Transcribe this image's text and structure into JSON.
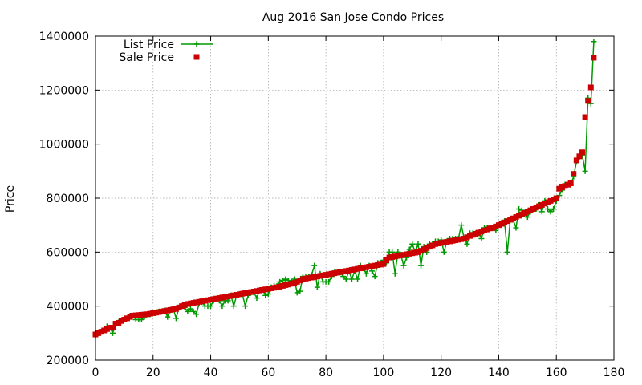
{
  "chart_data": {
    "type": "line",
    "title": "Aug 2016 San Jose Condo Prices",
    "xlabel": "",
    "ylabel": "Price",
    "xlim": [
      0,
      180
    ],
    "ylim": [
      200000,
      1400000
    ],
    "x_ticks": [
      "0",
      "20",
      "40",
      "60",
      "80",
      "100",
      "120",
      "140",
      "160",
      "180"
    ],
    "y_ticks": [
      "200000",
      "400000",
      "600000",
      "800000",
      "1000000",
      "1200000",
      "1400000"
    ],
    "grid": true,
    "legend_position": "top-left",
    "series": [
      {
        "name": "List Price",
        "style": "line-plus",
        "color": "#009900",
        "values": [
          290000,
          300000,
          305000,
          310000,
          325000,
          320000,
          300000,
          335000,
          340000,
          345000,
          350000,
          355000,
          365000,
          365000,
          350000,
          350000,
          350000,
          360000,
          370000,
          370000,
          375000,
          375000,
          380000,
          380000,
          385000,
          360000,
          385000,
          390000,
          355000,
          395000,
          400000,
          395000,
          380000,
          390000,
          380000,
          370000,
          410000,
          415000,
          400000,
          400000,
          400000,
          420000,
          425000,
          420000,
          400000,
          420000,
          420000,
          440000,
          400000,
          440000,
          445000,
          445000,
          400000,
          440000,
          450000,
          450000,
          430000,
          460000,
          460000,
          440000,
          445000,
          470000,
          475000,
          475000,
          490000,
          495000,
          500000,
          495000,
          490000,
          500000,
          450000,
          455000,
          510000,
          510000,
          510000,
          515000,
          550000,
          470000,
          520000,
          490000,
          490000,
          490000,
          510000,
          525000,
          525000,
          525000,
          510000,
          500000,
          530000,
          500000,
          530000,
          500000,
          550000,
          540000,
          520000,
          550000,
          530000,
          510000,
          560000,
          560000,
          570000,
          560000,
          600000,
          600000,
          520000,
          600000,
          590000,
          550000,
          580000,
          610000,
          630000,
          600000,
          630000,
          550000,
          620000,
          600000,
          630000,
          630000,
          640000,
          640000,
          645000,
          600000,
          640000,
          650000,
          650000,
          650000,
          650000,
          700000,
          650000,
          630000,
          670000,
          670000,
          670000,
          670000,
          650000,
          690000,
          690000,
          690000,
          690000,
          680000,
          700000,
          710000,
          715000,
          600000,
          720000,
          720000,
          690000,
          760000,
          755000,
          740000,
          730000,
          750000,
          760000,
          760000,
          775000,
          750000,
          790000,
          760000,
          750000,
          760000,
          790000,
          810000,
          830000,
          850000,
          850000,
          850000,
          880000,
          935000,
          950000,
          960000,
          900000,
          1170000,
          1150000,
          1380000
        ]
      },
      {
        "name": "Sale Price",
        "style": "square",
        "color": "#cc0000",
        "values": [
          295000,
          300000,
          305000,
          310000,
          315000,
          320000,
          320000,
          335000,
          338000,
          345000,
          350000,
          355000,
          360000,
          365000,
          366000,
          367000,
          368000,
          369000,
          370000,
          372000,
          374000,
          376000,
          378000,
          380000,
          382000,
          384000,
          386000,
          388000,
          390000,
          395000,
          400000,
          405000,
          408000,
          410000,
          412000,
          414000,
          416000,
          418000,
          420000,
          422000,
          424000,
          426000,
          428000,
          430000,
          432000,
          434000,
          436000,
          438000,
          440000,
          442000,
          444000,
          446000,
          448000,
          450000,
          452000,
          454000,
          456000,
          458000,
          460000,
          462000,
          464000,
          466000,
          468000,
          470000,
          472000,
          475000,
          478000,
          480000,
          483000,
          486000,
          490000,
          495000,
          500000,
          502000,
          504000,
          506000,
          508000,
          510000,
          512000,
          514000,
          516000,
          518000,
          520000,
          522000,
          524000,
          526000,
          528000,
          530000,
          532000,
          534000,
          536000,
          538000,
          540000,
          542000,
          544000,
          546000,
          548000,
          550000,
          552000,
          554000,
          556000,
          570000,
          580000,
          582000,
          584000,
          586000,
          588000,
          590000,
          592000,
          594000,
          596000,
          598000,
          600000,
          605000,
          610000,
          615000,
          620000,
          625000,
          630000,
          632000,
          634000,
          636000,
          638000,
          640000,
          642000,
          644000,
          646000,
          648000,
          650000,
          655000,
          660000,
          664000,
          668000,
          672000,
          676000,
          680000,
          684000,
          688000,
          690000,
          695000,
          700000,
          705000,
          710000,
          715000,
          720000,
          725000,
          730000,
          735000,
          740000,
          745000,
          750000,
          755000,
          760000,
          765000,
          770000,
          775000,
          780000,
          785000,
          790000,
          795000,
          800000,
          835000,
          840000,
          845000,
          850000,
          855000,
          890000,
          940000,
          955000,
          970000,
          1100000,
          1160000,
          1210000,
          1320000
        ]
      }
    ]
  }
}
